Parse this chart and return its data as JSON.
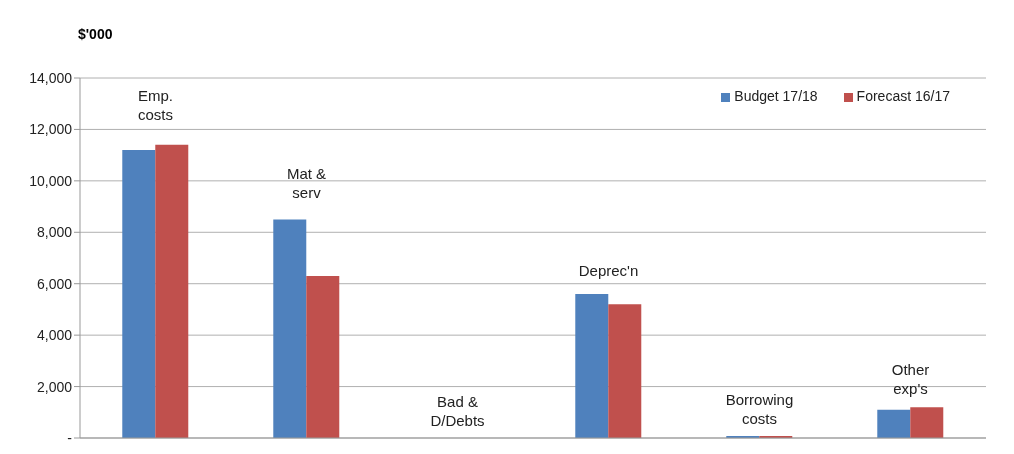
{
  "chart_data": {
    "type": "bar",
    "ylabel": "$'000",
    "categories": [
      "Emp.\ncosts",
      "Mat &\nserv",
      "Bad &\nD/Debts",
      "Deprec'n",
      "Borrowing\ncosts",
      "Other\nexp's"
    ],
    "series": [
      {
        "name": "Budget 17/18",
        "color": "#4f81bd",
        "values": [
          11200,
          8500,
          0,
          5600,
          80,
          1100
        ]
      },
      {
        "name": "Forecast 16/17",
        "color": "#c0504d",
        "values": [
          11400,
          6300,
          0,
          5200,
          80,
          1200
        ]
      }
    ],
    "ylim": [
      0,
      14000
    ],
    "yticks": [
      {
        "value": 0,
        "label": "-"
      },
      {
        "value": 2000,
        "label": "2,000"
      },
      {
        "value": 4000,
        "label": "4,000"
      },
      {
        "value": 6000,
        "label": "6,000"
      },
      {
        "value": 8000,
        "label": "8,000"
      },
      {
        "value": 10000,
        "label": "10,000"
      },
      {
        "value": 12000,
        "label": "12,000"
      },
      {
        "value": 14000,
        "label": "14,000"
      }
    ],
    "grid": "y",
    "legend": "top right"
  }
}
